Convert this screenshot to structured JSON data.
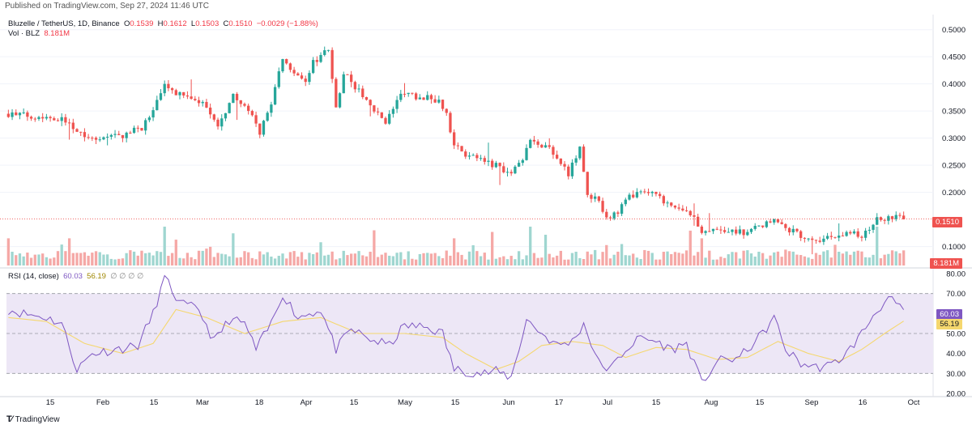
{
  "header": {
    "published": "Published on TradingView.com, Sep 27, 2024 11:46 UTC"
  },
  "legend_main": {
    "symbol": "Bluzelle / TetherUS, 1D, Binance",
    "o_label": "O",
    "o_value": "0.1539",
    "h_label": "H",
    "h_value": "0.1612",
    "l_label": "L",
    "l_value": "0.1503",
    "c_label": "C",
    "c_value": "0.1510",
    "change": "−0.0029 (−1.88%)"
  },
  "legend_vol": {
    "label": "Vol · BLZ",
    "value": "8.181M"
  },
  "legend_rsi": {
    "label": "RSI (14, close)",
    "rsi_value": "60.03",
    "ma_value": "56.19",
    "extra": "∅ ∅ ∅ ∅"
  },
  "badges": {
    "price": "0.1510",
    "volume": "8.181M",
    "rsi": "60.03",
    "rsi_ma": "56.19"
  },
  "footer": {
    "brand": "TradingView"
  },
  "colors": {
    "up": "#26a69a",
    "down": "#ef5350",
    "vol_up": "#9fd6d0",
    "vol_down": "#f5a8a6",
    "rsi": "#7e57c2",
    "rsi_ma": "#f5d76e",
    "rsi_band": "#ede7f6"
  },
  "chart_data": [
    {
      "type": "candlestick",
      "series": [
        {
          "name": "Bluzelle / TetherUS, 1D, Binance"
        }
      ],
      "y_ticks": [
        "0.5000",
        "0.4500",
        "0.4000",
        "0.3500",
        "0.3000",
        "0.2500",
        "0.2000",
        "0.1000"
      ],
      "ylim": [
        0.08,
        0.51
      ],
      "x_ticks": [
        "15",
        "Feb",
        "15",
        "Mar",
        "18",
        "Apr",
        "15",
        "May",
        "15",
        "Jun",
        "17",
        "Jul",
        "15",
        "Aug",
        "15",
        "Sep",
        "16",
        "Oct"
      ],
      "last_close": 0.151,
      "anchors": [
        {
          "day": 0,
          "close": 0.345
        },
        {
          "day": 8,
          "close": 0.34
        },
        {
          "day": 12,
          "close": 0.338
        },
        {
          "day": 16,
          "close": 0.33
        },
        {
          "day": 18,
          "close": 0.315
        },
        {
          "day": 22,
          "close": 0.3
        },
        {
          "day": 30,
          "close": 0.305
        },
        {
          "day": 35,
          "close": 0.32
        },
        {
          "day": 38,
          "close": 0.35
        },
        {
          "day": 41,
          "close": 0.395
        },
        {
          "day": 45,
          "close": 0.38
        },
        {
          "day": 52,
          "close": 0.36
        },
        {
          "day": 55,
          "close": 0.32
        },
        {
          "day": 59,
          "close": 0.38
        },
        {
          "day": 64,
          "close": 0.34
        },
        {
          "day": 66,
          "close": 0.31
        },
        {
          "day": 69,
          "close": 0.365
        },
        {
          "day": 72,
          "close": 0.45
        },
        {
          "day": 75,
          "close": 0.415
        },
        {
          "day": 78,
          "close": 0.4
        },
        {
          "day": 80,
          "close": 0.44
        },
        {
          "day": 84,
          "close": 0.465
        },
        {
          "day": 86,
          "close": 0.355
        },
        {
          "day": 88,
          "close": 0.42
        },
        {
          "day": 91,
          "close": 0.395
        },
        {
          "day": 95,
          "close": 0.36
        },
        {
          "day": 99,
          "close": 0.33
        },
        {
          "day": 103,
          "close": 0.38
        },
        {
          "day": 109,
          "close": 0.375
        },
        {
          "day": 113,
          "close": 0.37
        },
        {
          "day": 115,
          "close": 0.345
        },
        {
          "day": 117,
          "close": 0.285
        },
        {
          "day": 120,
          "close": 0.27
        },
        {
          "day": 124,
          "close": 0.258
        },
        {
          "day": 128,
          "close": 0.25
        },
        {
          "day": 132,
          "close": 0.235
        },
        {
          "day": 135,
          "close": 0.26
        },
        {
          "day": 137,
          "close": 0.295
        },
        {
          "day": 140,
          "close": 0.28
        },
        {
          "day": 142,
          "close": 0.285
        },
        {
          "day": 145,
          "close": 0.255
        },
        {
          "day": 147,
          "close": 0.235
        },
        {
          "day": 150,
          "close": 0.28
        },
        {
          "day": 152,
          "close": 0.2
        },
        {
          "day": 155,
          "close": 0.18
        },
        {
          "day": 157,
          "close": 0.148
        },
        {
          "day": 160,
          "close": 0.165
        },
        {
          "day": 163,
          "close": 0.19
        },
        {
          "day": 166,
          "close": 0.2
        },
        {
          "day": 170,
          "close": 0.195
        },
        {
          "day": 174,
          "close": 0.17
        },
        {
          "day": 178,
          "close": 0.168
        },
        {
          "day": 180,
          "close": 0.155
        },
        {
          "day": 182,
          "close": 0.12
        },
        {
          "day": 185,
          "close": 0.128
        },
        {
          "day": 190,
          "close": 0.13
        },
        {
          "day": 194,
          "close": 0.125
        },
        {
          "day": 198,
          "close": 0.14
        },
        {
          "day": 201,
          "close": 0.155
        },
        {
          "day": 205,
          "close": 0.13
        },
        {
          "day": 210,
          "close": 0.115
        },
        {
          "day": 214,
          "close": 0.112
        },
        {
          "day": 218,
          "close": 0.12
        },
        {
          "day": 221,
          "close": 0.125
        },
        {
          "day": 224,
          "close": 0.12
        },
        {
          "day": 226,
          "close": 0.135
        },
        {
          "day": 228,
          "close": 0.15
        },
        {
          "day": 232,
          "close": 0.155
        },
        {
          "day": 235,
          "close": 0.151
        }
      ]
    },
    {
      "type": "bar",
      "series": [
        {
          "name": "Vol · BLZ"
        }
      ],
      "last_value": "8.181M"
    },
    {
      "type": "line",
      "series": [
        {
          "name": "RSI (14, close)"
        },
        {
          "name": "RSI-based MA"
        }
      ],
      "y_ticks": [
        "80.00",
        "70.00",
        "50.00",
        "40.00",
        "30.00",
        "20.00"
      ],
      "ylim": [
        20,
        80
      ],
      "bands": [
        30,
        50,
        70
      ],
      "last_rsi": 60.03,
      "last_ma": 56.19,
      "rsi_anchors": [
        {
          "day": 0,
          "v": 62
        },
        {
          "day": 4,
          "v": 60
        },
        {
          "day": 10,
          "v": 58
        },
        {
          "day": 14,
          "v": 55
        },
        {
          "day": 18,
          "v": 32
        },
        {
          "day": 22,
          "v": 40
        },
        {
          "day": 28,
          "v": 42
        },
        {
          "day": 34,
          "v": 44
        },
        {
          "day": 38,
          "v": 60
        },
        {
          "day": 41,
          "v": 78
        },
        {
          "day": 45,
          "v": 65
        },
        {
          "day": 50,
          "v": 62
        },
        {
          "day": 54,
          "v": 46
        },
        {
          "day": 58,
          "v": 57
        },
        {
          "day": 62,
          "v": 55
        },
        {
          "day": 65,
          "v": 42
        },
        {
          "day": 69,
          "v": 55
        },
        {
          "day": 72,
          "v": 70
        },
        {
          "day": 76,
          "v": 58
        },
        {
          "day": 82,
          "v": 62
        },
        {
          "day": 86,
          "v": 42
        },
        {
          "day": 90,
          "v": 52
        },
        {
          "day": 95,
          "v": 47
        },
        {
          "day": 100,
          "v": 44
        },
        {
          "day": 104,
          "v": 54
        },
        {
          "day": 110,
          "v": 53
        },
        {
          "day": 114,
          "v": 50
        },
        {
          "day": 117,
          "v": 32
        },
        {
          "day": 124,
          "v": 30
        },
        {
          "day": 128,
          "v": 31
        },
        {
          "day": 132,
          "v": 28
        },
        {
          "day": 136,
          "v": 57
        },
        {
          "day": 140,
          "v": 50
        },
        {
          "day": 144,
          "v": 44
        },
        {
          "day": 148,
          "v": 46
        },
        {
          "day": 151,
          "v": 55
        },
        {
          "day": 155,
          "v": 35
        },
        {
          "day": 158,
          "v": 32
        },
        {
          "day": 162,
          "v": 42
        },
        {
          "day": 166,
          "v": 48
        },
        {
          "day": 170,
          "v": 46
        },
        {
          "day": 174,
          "v": 42
        },
        {
          "day": 178,
          "v": 45
        },
        {
          "day": 182,
          "v": 25
        },
        {
          "day": 186,
          "v": 36
        },
        {
          "day": 192,
          "v": 38
        },
        {
          "day": 198,
          "v": 50
        },
        {
          "day": 201,
          "v": 58
        },
        {
          "day": 204,
          "v": 42
        },
        {
          "day": 208,
          "v": 35
        },
        {
          "day": 212,
          "v": 33
        },
        {
          "day": 216,
          "v": 34
        },
        {
          "day": 220,
          "v": 40
        },
        {
          "day": 224,
          "v": 50
        },
        {
          "day": 228,
          "v": 62
        },
        {
          "day": 231,
          "v": 67
        },
        {
          "day": 233,
          "v": 65
        },
        {
          "day": 235,
          "v": 60
        }
      ],
      "ma_anchors": [
        {
          "day": 0,
          "v": 58
        },
        {
          "day": 10,
          "v": 56
        },
        {
          "day": 20,
          "v": 45
        },
        {
          "day": 30,
          "v": 40
        },
        {
          "day": 38,
          "v": 45
        },
        {
          "day": 44,
          "v": 62
        },
        {
          "day": 52,
          "v": 58
        },
        {
          "day": 62,
          "v": 50
        },
        {
          "day": 72,
          "v": 56
        },
        {
          "day": 82,
          "v": 58
        },
        {
          "day": 92,
          "v": 50
        },
        {
          "day": 104,
          "v": 50
        },
        {
          "day": 114,
          "v": 48
        },
        {
          "day": 120,
          "v": 40
        },
        {
          "day": 128,
          "v": 32
        },
        {
          "day": 134,
          "v": 36
        },
        {
          "day": 140,
          "v": 44
        },
        {
          "day": 148,
          "v": 46
        },
        {
          "day": 156,
          "v": 44
        },
        {
          "day": 162,
          "v": 38
        },
        {
          "day": 170,
          "v": 43
        },
        {
          "day": 178,
          "v": 42
        },
        {
          "day": 186,
          "v": 37
        },
        {
          "day": 194,
          "v": 38
        },
        {
          "day": 202,
          "v": 46
        },
        {
          "day": 210,
          "v": 40
        },
        {
          "day": 218,
          "v": 36
        },
        {
          "day": 224,
          "v": 42
        },
        {
          "day": 230,
          "v": 50
        },
        {
          "day": 235,
          "v": 56.19
        }
      ]
    }
  ]
}
